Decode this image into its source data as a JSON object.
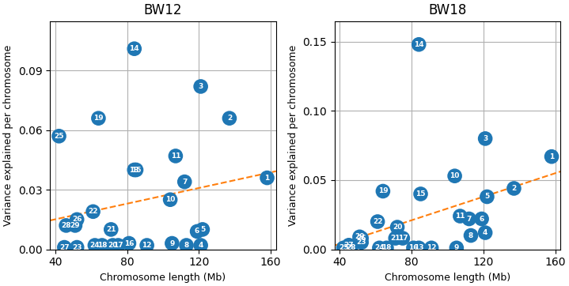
{
  "chart_data": [
    {
      "type": "scatter",
      "title": "BW12",
      "x_label": "Chromosome length (Mb)",
      "y_label": "Variance explained per chromosome",
      "x": [
        158,
        137,
        121,
        121,
        122,
        119,
        112,
        113,
        105,
        104,
        107,
        91,
        84,
        84,
        85,
        81,
        75,
        66,
        64,
        72,
        71,
        61,
        52,
        62,
        42,
        52,
        45,
        46,
        51
      ],
      "values": [
        0.036,
        0.066,
        0.082,
        0.002,
        0.01,
        0.009,
        0.034,
        0.002,
        0.003,
        0.025,
        0.047,
        0.002,
        0.04,
        0.101,
        0.04,
        0.003,
        0.002,
        0.002,
        0.066,
        0.002,
        0.01,
        0.019,
        0.001,
        0.002,
        0.057,
        0.015,
        0.001,
        0.012,
        0.012
      ],
      "point_labels": [
        "1",
        "2",
        "3",
        "4",
        "5",
        "6",
        "7",
        "8",
        "9",
        "10",
        "11",
        "12",
        "13",
        "14",
        "15",
        "16",
        "17",
        "18",
        "19",
        "20",
        "21",
        "22",
        "23",
        "24",
        "25",
        "26",
        "27",
        "28",
        "29"
      ],
      "trend_line": {
        "type": "line",
        "line_style": "dashed",
        "x": [
          37,
          163
        ],
        "y": [
          0.014535,
          0.039338
        ]
      },
      "xlim": [
        37,
        163
      ],
      "xticks": [
        40,
        80,
        120,
        160
      ],
      "ylim": [
        0,
        0.115
      ],
      "yticks": [
        {
          "value": 0.0,
          "label": "0.00"
        },
        {
          "value": 0.03,
          "label": "0.03"
        },
        {
          "value": 0.06,
          "label": "0.06"
        },
        {
          "value": 0.09,
          "label": "0.09"
        }
      ],
      "grid": true
    },
    {
      "type": "scatter",
      "title": "BW18",
      "x_label": "Chromosome length (Mb)",
      "y_label": "Variance explained per chromosome",
      "x": [
        158,
        137,
        121,
        121,
        122,
        119,
        112,
        113,
        105,
        104,
        107,
        91,
        84,
        84,
        85,
        81,
        75,
        66,
        64,
        72,
        71,
        61,
        52,
        62,
        42,
        52,
        45,
        46,
        51
      ],
      "values": [
        0.067,
        0.044,
        0.08,
        0.012,
        0.038,
        0.022,
        0.022,
        0.01,
        0.001,
        0.053,
        0.024,
        0.001,
        0.001,
        0.148,
        0.04,
        0.001,
        0.008,
        0.001,
        0.042,
        0.016,
        0.008,
        0.02,
        0.005,
        0.001,
        0.001,
        0.008,
        0.003,
        0.001,
        0.009
      ],
      "point_labels": [
        "1",
        "2",
        "3",
        "4",
        "5",
        "6",
        "7",
        "8",
        "9",
        "10",
        "11",
        "12",
        "13",
        "14",
        "15",
        "16",
        "17",
        "18",
        "19",
        "20",
        "21",
        "22",
        "23",
        "24",
        "25",
        "26",
        "27",
        "28",
        "29"
      ],
      "trend_line": {
        "type": "line",
        "line_style": "dashed",
        "x": [
          37,
          163
        ],
        "y": [
          0.002759,
          0.056242
        ]
      },
      "xlim": [
        37,
        163
      ],
      "xticks": [
        40,
        80,
        120,
        160
      ],
      "ylim": [
        0,
        0.165
      ],
      "yticks": [
        {
          "value": 0.0,
          "label": "0.00"
        },
        {
          "value": 0.05,
          "label": "0.05"
        },
        {
          "value": 0.1,
          "label": "0.10"
        },
        {
          "value": 0.15,
          "label": "0.15"
        }
      ],
      "grid": true
    }
  ]
}
